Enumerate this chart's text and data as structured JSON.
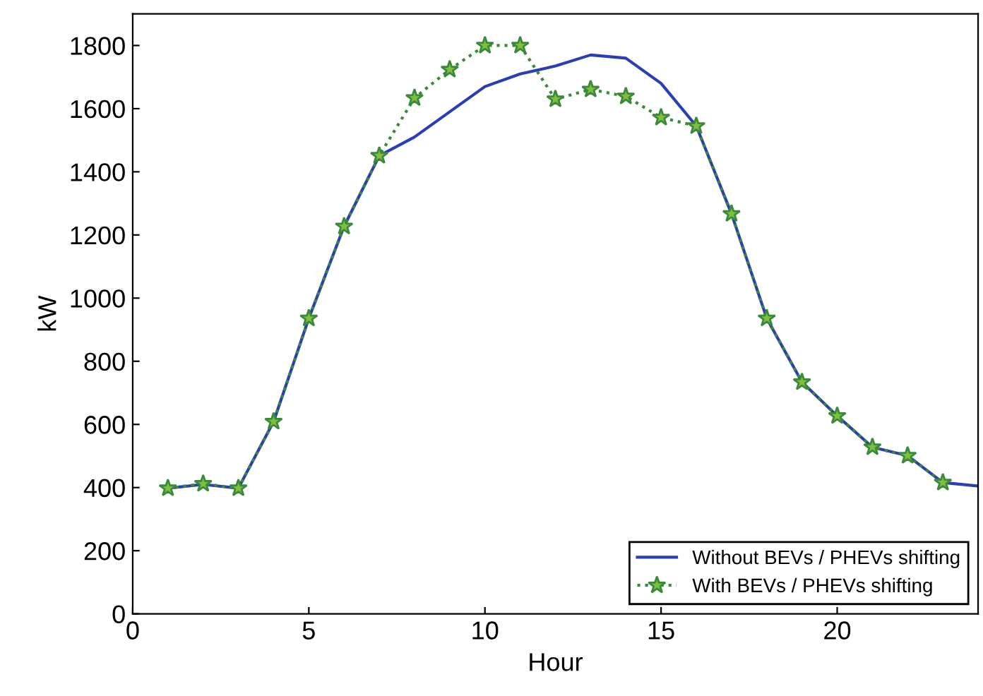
{
  "chart_data": {
    "type": "line",
    "xlabel": "Hour",
    "ylabel": "kW",
    "xlim": [
      0,
      24
    ],
    "ylim": [
      0,
      1900
    ],
    "xticks": [
      0,
      5,
      10,
      15,
      20
    ],
    "yticks": [
      0,
      200,
      400,
      600,
      800,
      1000,
      1200,
      1400,
      1600,
      1800
    ],
    "grid": false,
    "legend": "bottom right",
    "series": [
      {
        "name": "Without BEVs / PHEVs shifting",
        "color": "#2b3fb5",
        "marker": "none",
        "line_style": "solid",
        "x": [
          1,
          2,
          3,
          4,
          5,
          6,
          7,
          8,
          9,
          10,
          11,
          12,
          13,
          14,
          15,
          16,
          17,
          18,
          19,
          20,
          21,
          22,
          23,
          24
        ],
        "values": [
          398,
          410,
          398,
          609,
          936,
          1227,
          1451,
          1510,
          1590,
          1670,
          1710,
          1735,
          1770,
          1760,
          1680,
          1545,
          1267,
          936,
          734,
          627,
          528,
          501,
          416,
          405
        ]
      },
      {
        "name": "With BEVs / PHEVs shifting",
        "color": "#3a8a3a",
        "marker": "star",
        "line_style": "dotted",
        "x": [
          1,
          2,
          3,
          4,
          5,
          6,
          7,
          8,
          9,
          10,
          11,
          12,
          13,
          14,
          15,
          16,
          17,
          18,
          19,
          20,
          21,
          22,
          23
        ],
        "values": [
          398,
          412,
          398,
          609,
          936,
          1227,
          1451,
          1634,
          1724,
          1800,
          1800,
          1630,
          1661,
          1639,
          1572,
          1545,
          1267,
          936,
          734,
          627,
          528,
          501,
          416
        ]
      }
    ]
  }
}
